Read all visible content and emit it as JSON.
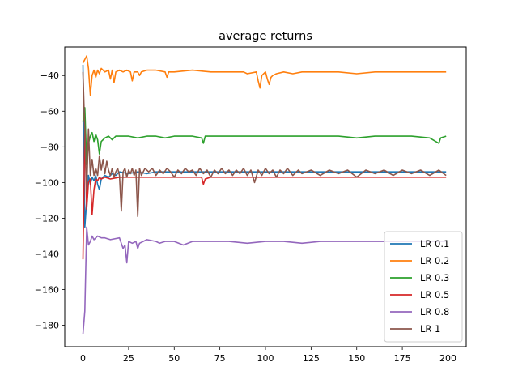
{
  "chart_data": {
    "type": "line",
    "title": "average returns",
    "xlabel": "",
    "ylabel": "",
    "xlim": [
      -10,
      210
    ],
    "ylim": [
      -192,
      -24
    ],
    "xticks": [
      0,
      25,
      50,
      75,
      100,
      125,
      150,
      175,
      200
    ],
    "yticks": [
      -180,
      -160,
      -140,
      -120,
      -100,
      -80,
      -60,
      -40
    ],
    "grid": false,
    "legend_position": "bottom-right",
    "series": [
      {
        "name": "LR 0.1",
        "color": "#1f77b4",
        "points": [
          [
            0,
            -34
          ],
          [
            1,
            -125
          ],
          [
            2,
            -110
          ],
          [
            3,
            -96
          ],
          [
            4,
            -101
          ],
          [
            5,
            -97
          ],
          [
            6,
            -99
          ],
          [
            7,
            -96
          ],
          [
            8,
            -101
          ],
          [
            9,
            -104
          ],
          [
            10,
            -98
          ],
          [
            12,
            -96
          ],
          [
            14,
            -97
          ],
          [
            16,
            -95
          ],
          [
            18,
            -96
          ],
          [
            20,
            -94
          ],
          [
            25,
            -95
          ],
          [
            30,
            -94
          ],
          [
            35,
            -95
          ],
          [
            40,
            -94
          ],
          [
            50,
            -94
          ],
          [
            60,
            -94
          ],
          [
            70,
            -94
          ],
          [
            80,
            -94
          ],
          [
            90,
            -94
          ],
          [
            100,
            -94
          ],
          [
            110,
            -94
          ],
          [
            120,
            -94
          ],
          [
            130,
            -94
          ],
          [
            140,
            -94
          ],
          [
            150,
            -94
          ],
          [
            160,
            -94
          ],
          [
            170,
            -94
          ],
          [
            180,
            -94
          ],
          [
            190,
            -94
          ],
          [
            199,
            -94
          ]
        ]
      },
      {
        "name": "LR 0.2",
        "color": "#ff7f0e",
        "points": [
          [
            0,
            -33
          ],
          [
            1,
            -31
          ],
          [
            2,
            -29
          ],
          [
            3,
            -36
          ],
          [
            4,
            -51
          ],
          [
            5,
            -40
          ],
          [
            6,
            -37
          ],
          [
            7,
            -41
          ],
          [
            8,
            -37
          ],
          [
            9,
            -39
          ],
          [
            10,
            -36
          ],
          [
            12,
            -38
          ],
          [
            14,
            -37
          ],
          [
            15,
            -42
          ],
          [
            16,
            -37
          ],
          [
            17,
            -44
          ],
          [
            18,
            -38
          ],
          [
            20,
            -37
          ],
          [
            22,
            -38
          ],
          [
            24,
            -37
          ],
          [
            26,
            -38
          ],
          [
            27,
            -43
          ],
          [
            28,
            -38
          ],
          [
            30,
            -38
          ],
          [
            31,
            -40
          ],
          [
            32,
            -38
          ],
          [
            35,
            -37
          ],
          [
            40,
            -37
          ],
          [
            45,
            -38
          ],
          [
            46,
            -41
          ],
          [
            47,
            -38
          ],
          [
            50,
            -38
          ],
          [
            60,
            -37
          ],
          [
            70,
            -38
          ],
          [
            80,
            -38
          ],
          [
            88,
            -38
          ],
          [
            90,
            -39
          ],
          [
            95,
            -38
          ],
          [
            96,
            -43
          ],
          [
            97,
            -47
          ],
          [
            98,
            -40
          ],
          [
            100,
            -38
          ],
          [
            101,
            -42
          ],
          [
            102,
            -45
          ],
          [
            103,
            -41
          ],
          [
            104,
            -40
          ],
          [
            106,
            -39
          ],
          [
            110,
            -38
          ],
          [
            115,
            -39
          ],
          [
            120,
            -38
          ],
          [
            130,
            -38
          ],
          [
            140,
            -38
          ],
          [
            150,
            -39
          ],
          [
            160,
            -38
          ],
          [
            170,
            -38
          ],
          [
            180,
            -38
          ],
          [
            190,
            -38
          ],
          [
            199,
            -38
          ]
        ]
      },
      {
        "name": "LR 0.3",
        "color": "#2ca02c",
        "points": [
          [
            0,
            -66
          ],
          [
            1,
            -58
          ],
          [
            2,
            -90
          ],
          [
            3,
            -78
          ],
          [
            4,
            -74
          ],
          [
            5,
            -72
          ],
          [
            6,
            -77
          ],
          [
            7,
            -73
          ],
          [
            8,
            -76
          ],
          [
            9,
            -84
          ],
          [
            10,
            -77
          ],
          [
            12,
            -75
          ],
          [
            14,
            -74
          ],
          [
            16,
            -76
          ],
          [
            18,
            -74
          ],
          [
            20,
            -74
          ],
          [
            25,
            -74
          ],
          [
            30,
            -75
          ],
          [
            35,
            -74
          ],
          [
            40,
            -74
          ],
          [
            45,
            -75
          ],
          [
            50,
            -74
          ],
          [
            55,
            -74
          ],
          [
            60,
            -74
          ],
          [
            65,
            -75
          ],
          [
            66,
            -78
          ],
          [
            67,
            -74
          ],
          [
            70,
            -74
          ],
          [
            80,
            -74
          ],
          [
            90,
            -74
          ],
          [
            100,
            -74
          ],
          [
            110,
            -74
          ],
          [
            120,
            -74
          ],
          [
            130,
            -74
          ],
          [
            140,
            -74
          ],
          [
            150,
            -75
          ],
          [
            160,
            -74
          ],
          [
            170,
            -74
          ],
          [
            180,
            -74
          ],
          [
            190,
            -75
          ],
          [
            195,
            -78
          ],
          [
            196,
            -75
          ],
          [
            199,
            -74
          ]
        ]
      },
      {
        "name": "LR 0.5",
        "color": "#d62728",
        "points": [
          [
            0,
            -143
          ],
          [
            1,
            -70
          ],
          [
            2,
            -115
          ],
          [
            3,
            -100
          ],
          [
            4,
            -98
          ],
          [
            5,
            -118
          ],
          [
            6,
            -104
          ],
          [
            7,
            -98
          ],
          [
            8,
            -99
          ],
          [
            9,
            -97
          ],
          [
            10,
            -98
          ],
          [
            12,
            -97
          ],
          [
            15,
            -98
          ],
          [
            20,
            -97
          ],
          [
            25,
            -97
          ],
          [
            30,
            -97
          ],
          [
            40,
            -97
          ],
          [
            50,
            -97
          ],
          [
            60,
            -97
          ],
          [
            65,
            -97
          ],
          [
            66,
            -101
          ],
          [
            67,
            -98
          ],
          [
            70,
            -97
          ],
          [
            80,
            -97
          ],
          [
            90,
            -97
          ],
          [
            100,
            -97
          ],
          [
            110,
            -97
          ],
          [
            120,
            -97
          ],
          [
            130,
            -97
          ],
          [
            140,
            -97
          ],
          [
            150,
            -97
          ],
          [
            160,
            -97
          ],
          [
            170,
            -97
          ],
          [
            180,
            -97
          ],
          [
            190,
            -97
          ],
          [
            199,
            -97
          ]
        ]
      },
      {
        "name": "LR 0.8",
        "color": "#9467bd",
        "points": [
          [
            0,
            -185
          ],
          [
            1,
            -172
          ],
          [
            2,
            -125
          ],
          [
            3,
            -135
          ],
          [
            4,
            -133
          ],
          [
            5,
            -130
          ],
          [
            6,
            -132
          ],
          [
            7,
            -131
          ],
          [
            8,
            -130
          ],
          [
            10,
            -131
          ],
          [
            12,
            -131
          ],
          [
            15,
            -132
          ],
          [
            20,
            -131
          ],
          [
            22,
            -137
          ],
          [
            23,
            -135
          ],
          [
            24,
            -145
          ],
          [
            25,
            -133
          ],
          [
            27,
            -134
          ],
          [
            29,
            -133
          ],
          [
            30,
            -137
          ],
          [
            31,
            -134
          ],
          [
            33,
            -133
          ],
          [
            35,
            -132
          ],
          [
            40,
            -133
          ],
          [
            42,
            -134
          ],
          [
            45,
            -133
          ],
          [
            50,
            -133
          ],
          [
            55,
            -135
          ],
          [
            60,
            -133
          ],
          [
            70,
            -133
          ],
          [
            80,
            -133
          ],
          [
            90,
            -134
          ],
          [
            100,
            -133
          ],
          [
            110,
            -133
          ],
          [
            120,
            -134
          ],
          [
            130,
            -133
          ],
          [
            140,
            -133
          ],
          [
            150,
            -133
          ],
          [
            160,
            -133
          ],
          [
            170,
            -133
          ],
          [
            180,
            -133
          ],
          [
            190,
            -133
          ],
          [
            199,
            -133
          ]
        ]
      },
      {
        "name": "LR 1",
        "color": "#8c564b",
        "points": [
          [
            0,
            -38
          ],
          [
            1,
            -72
          ],
          [
            2,
            -105
          ],
          [
            3,
            -70
          ],
          [
            4,
            -96
          ],
          [
            5,
            -87
          ],
          [
            6,
            -96
          ],
          [
            7,
            -92
          ],
          [
            8,
            -96
          ],
          [
            9,
            -85
          ],
          [
            10,
            -93
          ],
          [
            11,
            -87
          ],
          [
            12,
            -95
          ],
          [
            13,
            -88
          ],
          [
            14,
            -93
          ],
          [
            15,
            -96
          ],
          [
            16,
            -92
          ],
          [
            17,
            -97
          ],
          [
            18,
            -94
          ],
          [
            19,
            -92
          ],
          [
            20,
            -96
          ],
          [
            21,
            -116
          ],
          [
            22,
            -94
          ],
          [
            23,
            -92
          ],
          [
            24,
            -97
          ],
          [
            25,
            -93
          ],
          [
            26,
            -95
          ],
          [
            27,
            -92
          ],
          [
            28,
            -96
          ],
          [
            29,
            -93
          ],
          [
            30,
            -119
          ],
          [
            31,
            -92
          ],
          [
            32,
            -96
          ],
          [
            34,
            -92
          ],
          [
            36,
            -94
          ],
          [
            38,
            -92
          ],
          [
            40,
            -96
          ],
          [
            42,
            -93
          ],
          [
            44,
            -95
          ],
          [
            46,
            -92
          ],
          [
            48,
            -94
          ],
          [
            50,
            -97
          ],
          [
            52,
            -93
          ],
          [
            54,
            -95
          ],
          [
            56,
            -92
          ],
          [
            58,
            -94
          ],
          [
            60,
            -93
          ],
          [
            62,
            -96
          ],
          [
            64,
            -92
          ],
          [
            66,
            -95
          ],
          [
            68,
            -93
          ],
          [
            70,
            -97
          ],
          [
            72,
            -93
          ],
          [
            74,
            -95
          ],
          [
            76,
            -92
          ],
          [
            78,
            -95
          ],
          [
            80,
            -93
          ],
          [
            82,
            -96
          ],
          [
            84,
            -93
          ],
          [
            86,
            -95
          ],
          [
            88,
            -92
          ],
          [
            90,
            -96
          ],
          [
            92,
            -93
          ],
          [
            94,
            -100
          ],
          [
            96,
            -93
          ],
          [
            98,
            -96
          ],
          [
            100,
            -92
          ],
          [
            102,
            -95
          ],
          [
            104,
            -93
          ],
          [
            106,
            -97
          ],
          [
            108,
            -93
          ],
          [
            110,
            -95
          ],
          [
            112,
            -92
          ],
          [
            115,
            -96
          ],
          [
            118,
            -93
          ],
          [
            120,
            -95
          ],
          [
            125,
            -93
          ],
          [
            130,
            -96
          ],
          [
            135,
            -93
          ],
          [
            140,
            -95
          ],
          [
            145,
            -93
          ],
          [
            150,
            -97
          ],
          [
            155,
            -93
          ],
          [
            160,
            -95
          ],
          [
            165,
            -93
          ],
          [
            170,
            -96
          ],
          [
            175,
            -93
          ],
          [
            180,
            -95
          ],
          [
            185,
            -93
          ],
          [
            190,
            -96
          ],
          [
            195,
            -93
          ],
          [
            199,
            -96
          ]
        ]
      }
    ]
  }
}
